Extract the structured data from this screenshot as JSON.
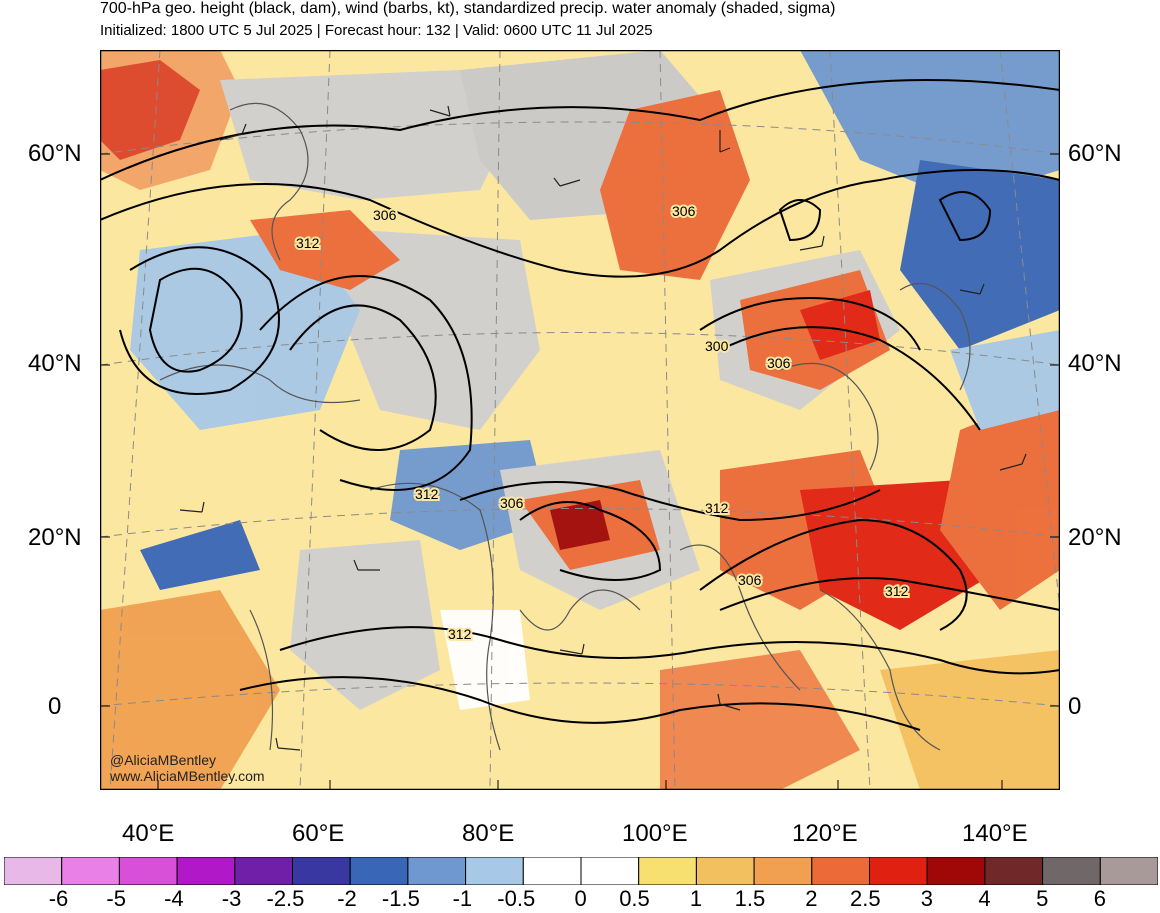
{
  "header": {
    "title": "700-hPa geo. height (black, dam), wind (barbs, kt), standardized precip. water anomaly (shaded, sigma)",
    "subtitle": "Initialized: 1800 UTC 5 Jul 2025 | Forecast hour: 132 | Valid: 0600 UTC 11 Jul 2025"
  },
  "map": {
    "lat_labels": [
      "60°N",
      "40°N",
      "20°N",
      "0"
    ],
    "lon_labels": [
      "40°E",
      "60°E",
      "80°E",
      "100°E",
      "120°E",
      "140°E"
    ],
    "contour_labels": [
      "306",
      "312",
      "306",
      "300",
      "306",
      "312",
      "306",
      "312",
      "306",
      "312",
      "312"
    ],
    "credit_handle": "@AliciaMBentley",
    "credit_site": "www.AliciaMBentley.com"
  },
  "colorbar": {
    "labels": [
      "-6",
      "-5",
      "-4",
      "-3",
      "-2.5",
      "-2",
      "-1.5",
      "-1",
      "-0.5",
      "0",
      "0.5",
      "1",
      "1.5",
      "2",
      "2.5",
      "3",
      "4",
      "5",
      "6"
    ],
    "colors": [
      "#e8b8e8",
      "#e880e8",
      "#d84fd8",
      "#b018c8",
      "#7020a8",
      "#3838a0",
      "#3a66b8",
      "#6f98d0",
      "#a8c8e8",
      "#ffffff",
      "#ffffff",
      "#f8e070",
      "#f3c060",
      "#f0a050",
      "#ec6a38",
      "#e02010",
      "#a00808",
      "#702828",
      "#706868",
      "#a89a98"
    ]
  }
}
